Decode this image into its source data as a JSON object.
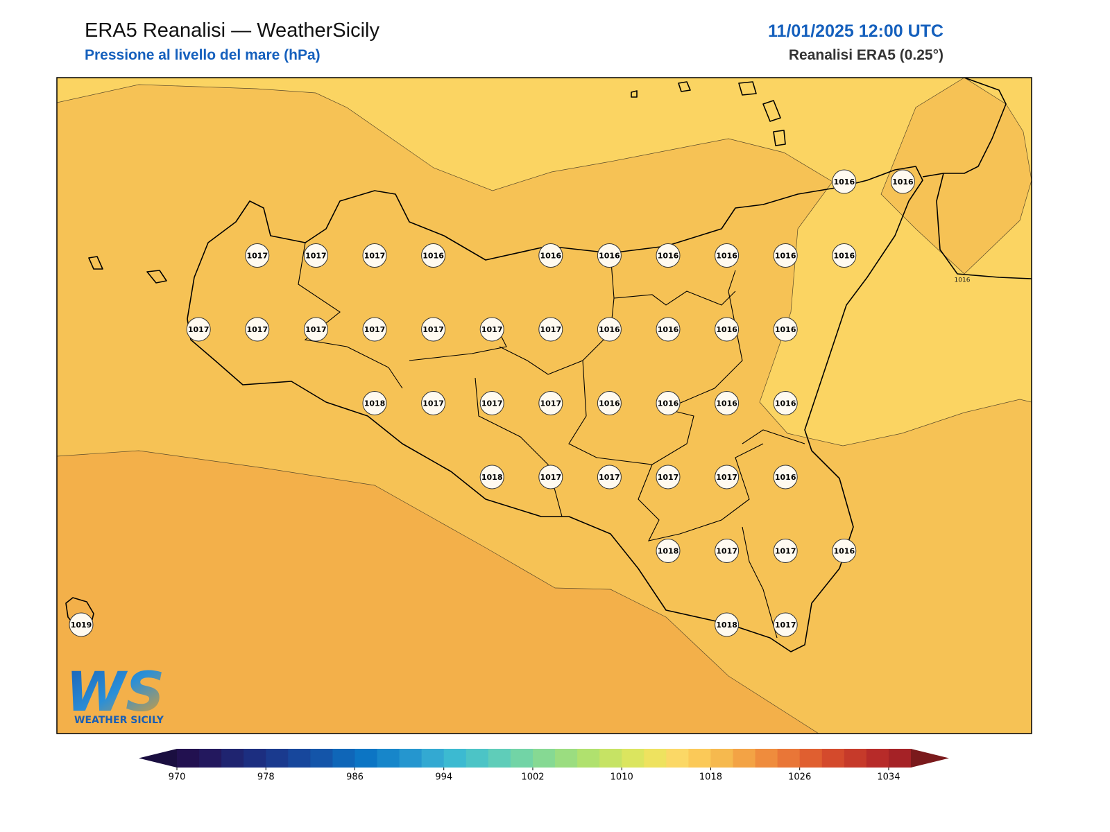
{
  "header": {
    "title": "ERA5 Reanalisi — WeatherSicily",
    "subtitle": "Pressione al livello del mare (hPa)",
    "datetime": "11/01/2025 12:00 UTC",
    "source": "Reanalisi ERA5 (0.25°)"
  },
  "map": {
    "grid_values": [
      [
        null,
        null,
        null,
        null,
        null,
        null,
        null,
        null,
        null,
        null,
        null,
        null,
        null,
        1016,
        1016
      ],
      [
        null,
        null,
        null,
        1017,
        1017,
        1017,
        1016,
        null,
        1016,
        1016,
        1016,
        1016,
        1016,
        1016,
        null
      ],
      [
        null,
        null,
        1017,
        1017,
        1017,
        1017,
        1017,
        1017,
        1017,
        1016,
        1016,
        1016,
        1016,
        null,
        null
      ],
      [
        null,
        null,
        null,
        null,
        null,
        1018,
        1017,
        1017,
        1017,
        1016,
        1016,
        1016,
        1016,
        null,
        null
      ],
      [
        null,
        null,
        null,
        null,
        null,
        null,
        null,
        1018,
        1017,
        1017,
        1017,
        1017,
        1016,
        null,
        null
      ],
      [
        null,
        null,
        null,
        null,
        null,
        null,
        null,
        null,
        null,
        null,
        1018,
        1017,
        1017,
        1016,
        null
      ],
      [
        1019,
        null,
        null,
        null,
        null,
        null,
        null,
        null,
        null,
        null,
        null,
        1018,
        1017,
        null,
        null
      ]
    ],
    "contour_labels": [
      "1016"
    ]
  },
  "logo": {
    "letters": "WS",
    "name": "WEATHER SICILY"
  },
  "colorbar": {
    "lim": [
      970,
      1036
    ],
    "ticks": [
      970,
      978,
      986,
      994,
      1002,
      1010,
      1018,
      1026,
      1034
    ],
    "step": 2,
    "colors": [
      "#221150",
      "#23185e",
      "#1f2470",
      "#1c2e80",
      "#1a3a8e",
      "#17479c",
      "#1455a9",
      "#0f66b8",
      "#0c75c4",
      "#1786ca",
      "#2596cf",
      "#33a9d2",
      "#3cbad1",
      "#4cc4c6",
      "#5fcdb9",
      "#72d4a6",
      "#86d993",
      "#9bdd80",
      "#b0e16e",
      "#c6e364",
      "#dbe55f",
      "#eee25f",
      "#fbd866",
      "#fbc958",
      "#f6b94e",
      "#f3a345",
      "#ef8c3d",
      "#e97637",
      "#e05f30",
      "#d44a2c",
      "#c63a2a",
      "#b72b29",
      "#a52226"
    ],
    "under_color": "#1a0e40",
    "over_color": "#7a1a1c"
  }
}
